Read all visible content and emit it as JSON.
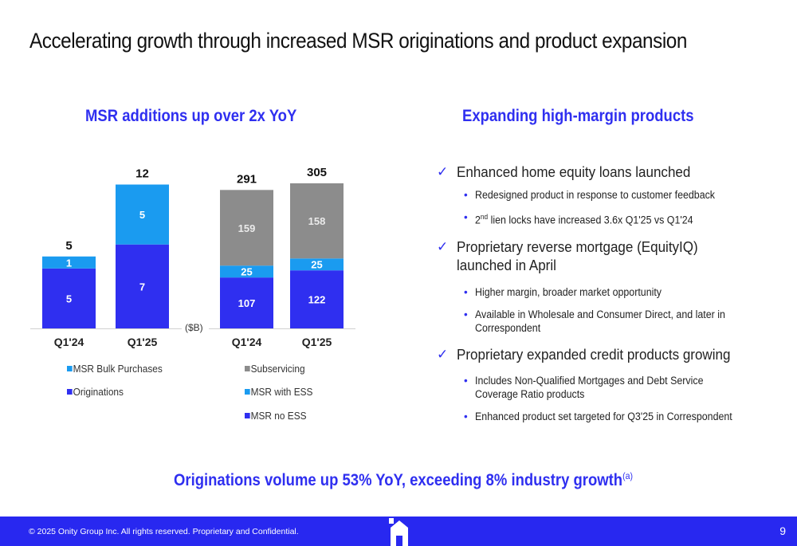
{
  "title": "Accelerating growth through increased MSR originations and product expansion",
  "left_section_title": "MSR additions up over 2x YoY",
  "right_section_title": "Expanding high-margin products",
  "unit_label": "($B)",
  "colors": {
    "accent": "#2f2ff0",
    "light_blue": "#1a9bf0",
    "gray": "#8c8c8c",
    "footer": "#2828f0"
  },
  "chart_data": [
    {
      "type": "bar",
      "stacked": true,
      "categories": [
        "Q1'24",
        "Q1'25"
      ],
      "series": [
        {
          "name": "Originations",
          "values": [
            5,
            7
          ],
          "color": "#2f2ff0"
        },
        {
          "name": "MSR Bulk Purchases",
          "values": [
            1,
            5
          ],
          "color": "#1a9bf0"
        }
      ],
      "totals": [
        5,
        12
      ],
      "legend": [
        "MSR Bulk Purchases",
        "Originations"
      ],
      "legend_position": "bottom",
      "ylim": [
        0,
        12.5
      ]
    },
    {
      "type": "bar",
      "stacked": true,
      "categories": [
        "Q1'24",
        "Q1'25"
      ],
      "series": [
        {
          "name": "MSR no ESS",
          "values": [
            107,
            122
          ],
          "color": "#2f2ff0"
        },
        {
          "name": "MSR with ESS",
          "values": [
            25,
            25
          ],
          "color": "#1a9bf0"
        },
        {
          "name": "Subservicing",
          "values": [
            159,
            158
          ],
          "color": "#8c8c8c"
        }
      ],
      "totals": [
        291,
        305
      ],
      "legend": [
        "Subservicing",
        "MSR with ESS",
        "MSR no ESS"
      ],
      "legend_position": "bottom",
      "ylim": [
        0,
        315
      ]
    }
  ],
  "bullets": [
    {
      "text": "Enhanced home equity loans launched",
      "subs": [
        {
          "text": "Redesigned product in response to customer feedback"
        },
        {
          "pre": "2",
          "sup": "nd",
          "text": " lien locks have increased 3.6x Q1'25 vs Q1'24"
        }
      ]
    },
    {
      "text": "Proprietary reverse mortgage (EquityIQ) launched in April",
      "subs": [
        {
          "text": "Higher margin, broader market opportunity"
        },
        {
          "text": "Available in Wholesale and Consumer Direct, and later in Correspondent"
        }
      ]
    },
    {
      "text": "Proprietary expanded credit products growing",
      "subs": [
        {
          "text": "Includes Non-Qualified Mortgages and Debt Service Coverage Ratio products"
        },
        {
          "text": "Enhanced product set targeted for Q3'25 in Correspondent"
        }
      ]
    }
  ],
  "check_icon": "✓",
  "bullet_icon": "•",
  "callout": {
    "text": "Originations volume up 53% YoY, exceeding 8% industry growth",
    "sup": "(a)"
  },
  "footer": {
    "text": "© 2025 Onity Group Inc. All rights reserved. Proprietary and Confidential.",
    "page": "9"
  }
}
